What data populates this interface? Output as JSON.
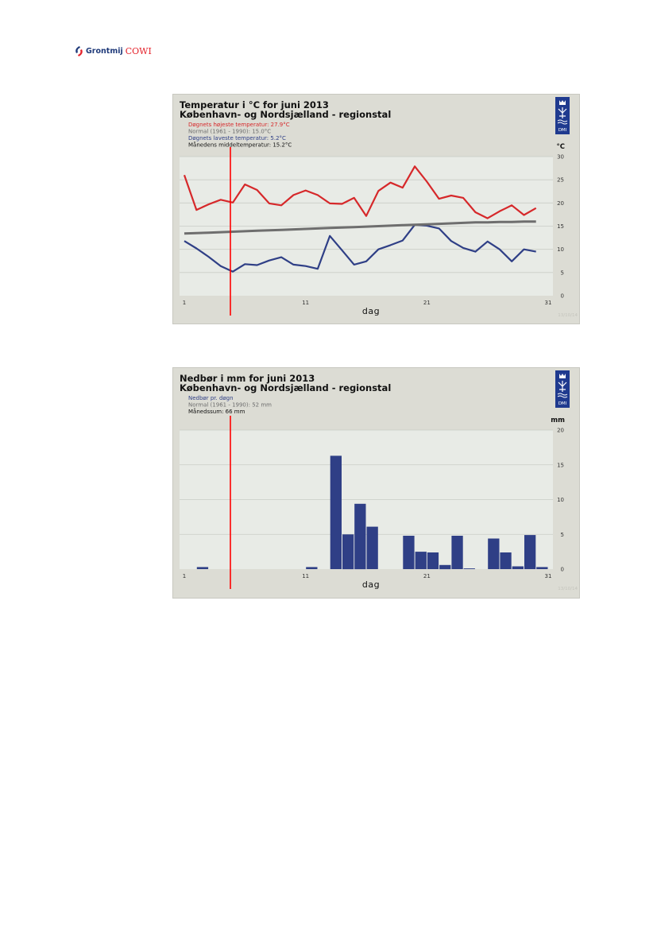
{
  "header": {
    "logo_grontmij": "Grontmij",
    "logo_cowi": "COWI"
  },
  "colors": {
    "max_temp": "#d6282a",
    "normal_temp": "#6e6e6e",
    "min_temp": "#2f3f86",
    "mean_temp": "#111111",
    "bars": "#2f3f86",
    "marker": "#ff0000",
    "panel": "#dcdcd4",
    "plot": "#e8ebe6"
  },
  "chart_data": [
    {
      "type": "line",
      "title": "Temperatur i °C for juni 2013",
      "subtitle": "København- og Nordsjælland - regionstal",
      "legend": [
        "Døgnets højeste temperatur: 27.9°C",
        "Normal (1961 - 1990): 15.0°C",
        "Døgnets laveste temperatur: 5.2°C",
        "Månedens middeltemperatur: 15.2°C"
      ],
      "legend_placement": "top-left",
      "xlabel": "dag",
      "ylabel": "°C",
      "x_ticks": [
        "1",
        "11",
        "21",
        "31"
      ],
      "y_ticks": [
        "0",
        "5",
        "10",
        "15",
        "20",
        "25",
        "30"
      ],
      "xlim": [
        1,
        31
      ],
      "ylim": [
        0,
        30
      ],
      "grid": true,
      "watermark": "13/10/14",
      "x": [
        1,
        2,
        3,
        4,
        5,
        6,
        7,
        8,
        9,
        10,
        11,
        12,
        13,
        14,
        15,
        16,
        17,
        18,
        19,
        20,
        21,
        22,
        23,
        24,
        25,
        26,
        27,
        28,
        29,
        30
      ],
      "series": [
        {
          "name": "Døgnets højeste temperatur",
          "values": [
            26.0,
            18.5,
            19.7,
            20.7,
            20.1,
            24.0,
            22.8,
            19.9,
            19.5,
            21.7,
            22.7,
            21.7,
            19.9,
            19.8,
            21.1,
            17.2,
            22.6,
            24.4,
            23.3,
            27.9,
            24.6,
            20.9,
            21.6,
            21.1,
            18.0,
            16.7,
            18.2,
            19.5,
            17.4,
            18.9
          ]
        },
        {
          "name": "Døgnets laveste temperatur",
          "values": [
            11.8,
            10.2,
            8.4,
            6.4,
            5.2,
            6.8,
            6.6,
            7.6,
            8.3,
            6.7,
            6.4,
            5.8,
            12.9,
            9.8,
            6.7,
            7.4,
            10.0,
            10.9,
            11.9,
            15.3,
            15.1,
            14.5,
            11.8,
            10.3,
            9.5,
            11.7,
            10.0,
            7.4,
            10.0,
            9.5
          ]
        },
        {
          "name": "Normal (1961 - 1990)",
          "values": [
            13.4,
            13.5,
            13.6,
            13.7,
            13.8,
            13.9,
            14.0,
            14.1,
            14.2,
            14.3,
            14.4,
            14.5,
            14.6,
            14.7,
            14.8,
            14.9,
            15.0,
            15.1,
            15.2,
            15.3,
            15.4,
            15.5,
            15.6,
            15.7,
            15.8,
            15.8,
            15.9,
            15.9,
            16.0,
            16.0
          ]
        }
      ],
      "marker_day": 4.8
    },
    {
      "type": "bar",
      "title": "Nedbør i mm for juni 2013",
      "subtitle": "København- og Nordsjælland - regionstal",
      "legend": [
        "Nedbør pr. døgn",
        "Normal (1961 - 1990): 52 mm",
        "Månedssum: 66 mm"
      ],
      "legend_placement": "top-left",
      "xlabel": "dag",
      "ylabel": "mm",
      "x_ticks": [
        "1",
        "11",
        "21",
        "31"
      ],
      "y_ticks": [
        "0",
        "5",
        "10",
        "15",
        "20"
      ],
      "xlim": [
        1,
        31
      ],
      "ylim": [
        0,
        20
      ],
      "grid": true,
      "watermark": "13/10/14",
      "x": [
        1,
        2,
        3,
        4,
        5,
        6,
        7,
        8,
        9,
        10,
        11,
        12,
        13,
        14,
        15,
        16,
        17,
        18,
        19,
        20,
        21,
        22,
        23,
        24,
        25,
        26,
        27,
        28,
        29,
        30
      ],
      "series": [
        {
          "name": "Nedbør pr. døgn",
          "values": [
            0,
            0.3,
            0,
            0,
            0,
            0,
            0,
            0,
            0,
            0,
            0.3,
            0,
            16.3,
            5.0,
            9.4,
            6.1,
            0,
            0,
            4.8,
            2.5,
            2.4,
            0.6,
            4.8,
            0.1,
            0,
            4.4,
            2.4,
            0.4,
            4.9,
            0.3
          ]
        }
      ],
      "marker_day": 4.8
    }
  ]
}
